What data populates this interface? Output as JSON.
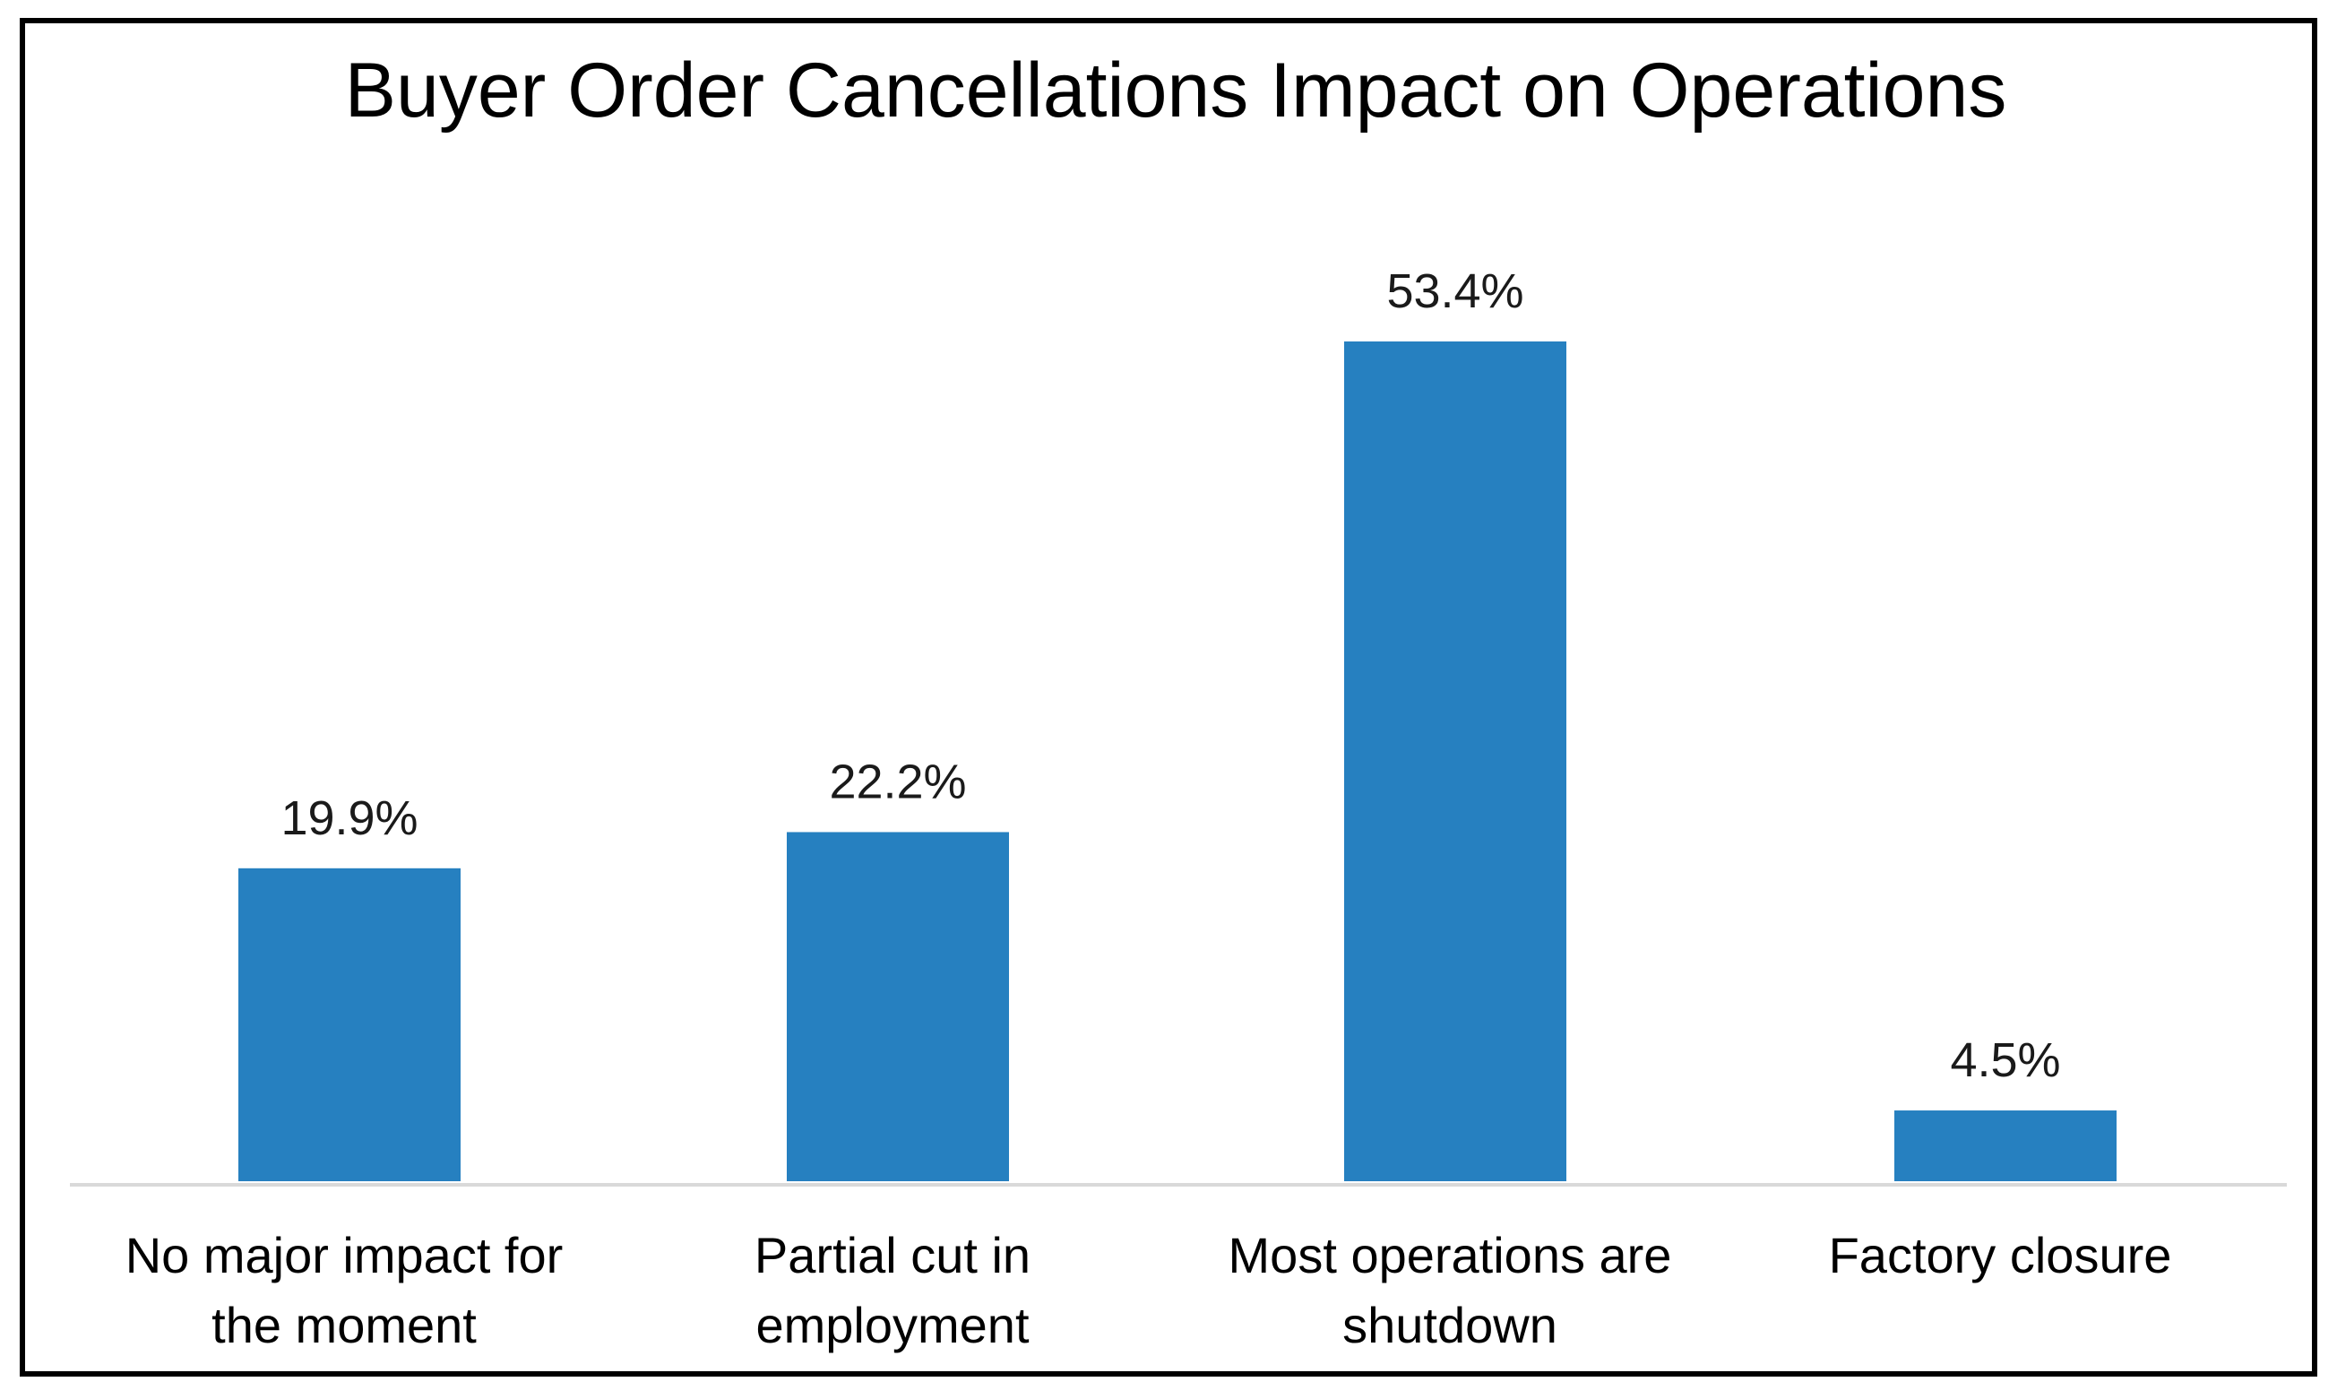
{
  "chart_data": {
    "type": "bar",
    "title": "Buyer Order Cancellations Impact on Operations",
    "categories": [
      [
        "No major impact for",
        "the moment"
      ],
      [
        "Partial cut in",
        "employment"
      ],
      [
        "Most operations are",
        "shutdown"
      ],
      [
        "Factory closure"
      ]
    ],
    "values": [
      19.9,
      22.2,
      53.4,
      4.5
    ],
    "data_labels": [
      "19.9%",
      "22.2%",
      "53.4%",
      "4.5%"
    ],
    "xlabel": "",
    "ylabel": "",
    "ylim": [
      0,
      60
    ],
    "grid": false,
    "legend": "none",
    "colors": {
      "bar": "#2680C0",
      "axis": "#D9D9D9",
      "border": "#000000"
    }
  }
}
